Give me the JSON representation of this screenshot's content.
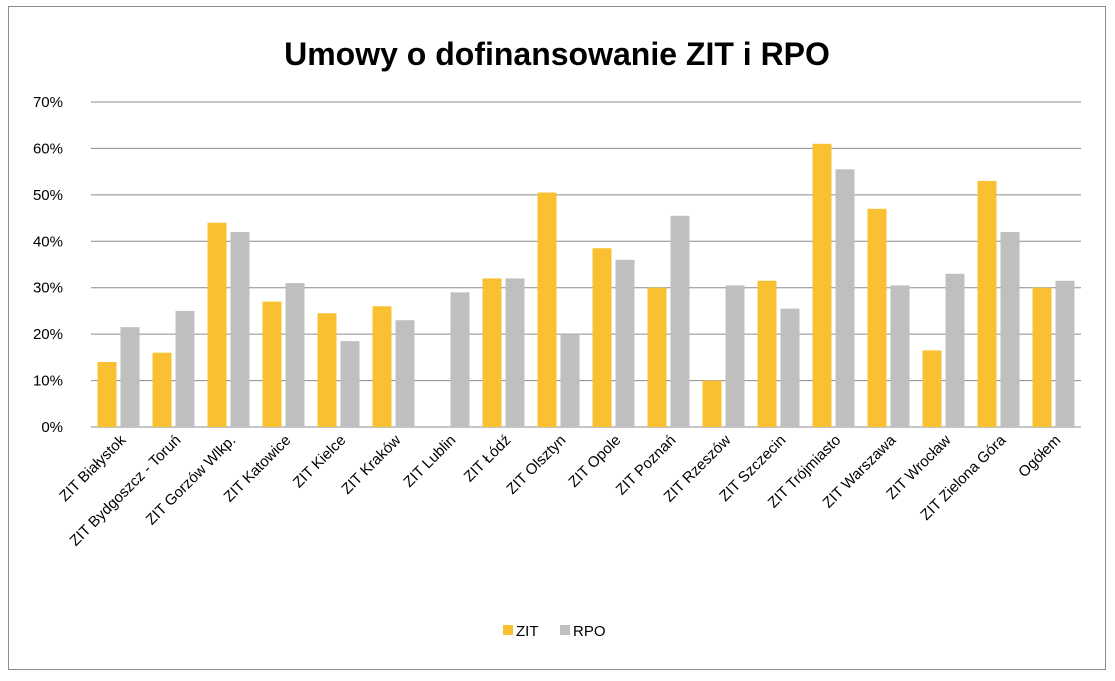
{
  "chart_data": {
    "type": "bar",
    "title": "Umowy o dofinansowanie ZIT i RPO",
    "xlabel": "",
    "ylabel": "",
    "ylim": [
      0,
      0.7
    ],
    "yticks": [
      0,
      0.1,
      0.2,
      0.3,
      0.4,
      0.5,
      0.6,
      0.7
    ],
    "ytick_labels": [
      "0%",
      "10%",
      "20%",
      "30%",
      "40%",
      "50%",
      "60%",
      "70%"
    ],
    "grid": true,
    "legend_position": "bottom",
    "categories": [
      "ZIT Białystok",
      "ZIT Bydgoszcz - Toruń",
      "ZIT Gorzów Wlkp.",
      "ZIT Katowice",
      "ZIT Kielce",
      "ZIT Kraków",
      "ZIT Lublin",
      "ZIT Łódź",
      "ZIT Olsztyn",
      "ZIT Opole",
      "ZIT Poznań",
      "ZIT Rzeszów",
      "ZIT Szczecin",
      "ZIT Trójmiasto",
      "ZIT Warszawa",
      "ZIT Wrocław",
      "ZIT Zielona Góra",
      "Ogółem"
    ],
    "series": [
      {
        "name": "ZIT",
        "color": "#f9c031",
        "values": [
          0.14,
          0.16,
          0.44,
          0.27,
          0.245,
          0.26,
          0.0,
          0.32,
          0.505,
          0.385,
          0.3,
          0.1,
          0.315,
          0.61,
          0.47,
          0.165,
          0.53,
          0.3
        ]
      },
      {
        "name": "RPO",
        "color": "#bfbfbf",
        "values": [
          0.215,
          0.25,
          0.42,
          0.31,
          0.185,
          0.23,
          0.29,
          0.32,
          0.2,
          0.36,
          0.455,
          0.305,
          0.255,
          0.555,
          0.305,
          0.33,
          0.42,
          0.315
        ]
      }
    ]
  }
}
